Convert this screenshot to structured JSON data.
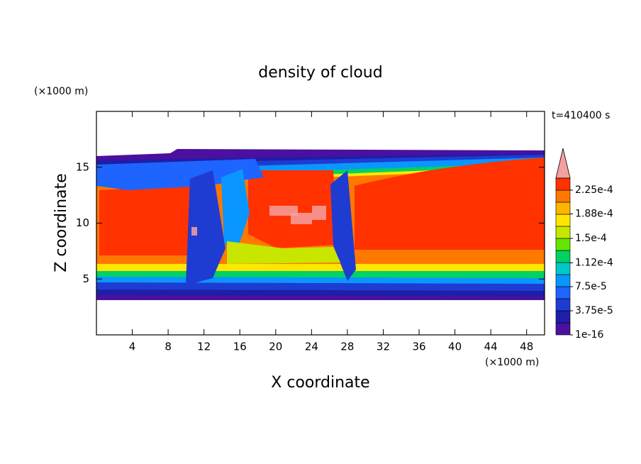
{
  "chart_data": {
    "type": "contour",
    "title": "density of cloud",
    "x_label": "X coordinate",
    "y_label": "Z coordinate",
    "x_unit": "(×1000 m)",
    "y_unit": "(×1000 m)",
    "annotation": "t=410400 s",
    "xlim": [
      0,
      50
    ],
    "ylim": [
      0,
      20
    ],
    "xticks": [
      4,
      8,
      12,
      16,
      20,
      24,
      28,
      32,
      36,
      40,
      44,
      48
    ],
    "yticks": [
      5,
      10,
      15
    ],
    "colorbar": {
      "levels": [
        1e-16,
        1.875e-05,
        3.75e-05,
        5.625e-05,
        7.5e-05,
        9.375e-05,
        0.0001125,
        0.00013125,
        0.00015,
        0.00016875,
        0.0001875,
        0.00020625,
        0.000225
      ],
      "colors": [
        "#4b10a0",
        "#1e1ea8",
        "#1e3cd2",
        "#1e64ff",
        "#0a96ff",
        "#00c8c8",
        "#00d264",
        "#64e600",
        "#c8e600",
        "#ffe600",
        "#ffb400",
        "#ff7800",
        "#ff3200"
      ],
      "extend_color": "#f4a0a0",
      "ticks": [
        {
          "value": 1e-16,
          "label": "1e-16"
        },
        {
          "value": 3.75e-05,
          "label": "3.75e-5"
        },
        {
          "value": 7.5e-05,
          "label": "7.5e-5"
        },
        {
          "value": 0.000112,
          "label": "1.12e-4"
        },
        {
          "value": 0.00015,
          "label": "1.5e-4"
        },
        {
          "value": 0.000188,
          "label": "1.88e-4"
        },
        {
          "value": 0.000225,
          "label": "2.25e-4"
        }
      ]
    }
  }
}
